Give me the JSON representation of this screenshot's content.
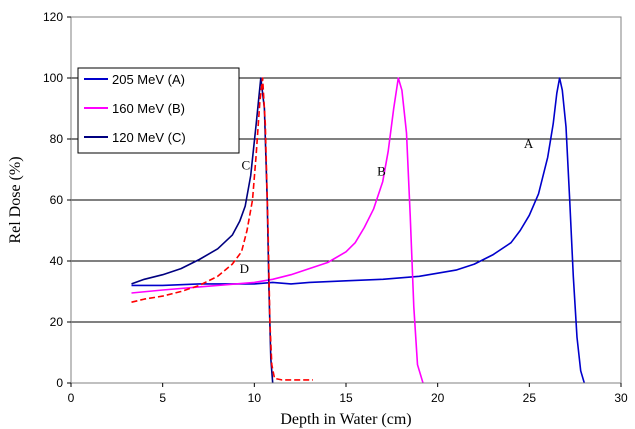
{
  "chart_data": {
    "type": "line",
    "xlabel": "Depth in Water  (cm)",
    "ylabel": "Rel Dose (%)",
    "xlim": [
      0,
      30
    ],
    "ylim": [
      0,
      120
    ],
    "x_ticks": [
      "0",
      "5",
      "10",
      "15",
      "20",
      "25",
      "30"
    ],
    "y_ticks": [
      "0",
      "20",
      "40",
      "60",
      "80",
      "100",
      "120"
    ],
    "grid": "horizontal",
    "legend_position": "top-left",
    "legend": [
      {
        "label": "205 MeV  (A)",
        "color": "#0000cc"
      },
      {
        "label": "160 MeV  (B)",
        "color": "#ff00ff"
      },
      {
        "label": "120 MeV  (C)",
        "color": "#000080"
      }
    ],
    "series": [
      {
        "label": "A",
        "color": "#0000cc",
        "dashed": false,
        "points": [
          [
            3.3,
            32
          ],
          [
            5,
            32
          ],
          [
            7,
            32.5
          ],
          [
            9,
            32.5
          ],
          [
            10,
            32.5
          ],
          [
            11,
            33
          ],
          [
            12,
            32.5
          ],
          [
            13,
            33
          ],
          [
            15,
            33.5
          ],
          [
            17,
            34
          ],
          [
            19,
            35
          ],
          [
            20,
            36
          ],
          [
            21,
            37
          ],
          [
            22,
            39
          ],
          [
            23,
            42
          ],
          [
            24,
            46
          ],
          [
            24.5,
            50
          ],
          [
            25,
            55
          ],
          [
            25.5,
            62
          ],
          [
            26,
            74
          ],
          [
            26.3,
            85
          ],
          [
            26.5,
            95
          ],
          [
            26.65,
            100
          ],
          [
            26.8,
            96
          ],
          [
            27,
            84
          ],
          [
            27.2,
            60
          ],
          [
            27.4,
            35
          ],
          [
            27.6,
            15
          ],
          [
            27.8,
            4
          ],
          [
            28,
            0
          ]
        ]
      },
      {
        "label": "B",
        "color": "#ff00ff",
        "dashed": false,
        "points": [
          [
            3.3,
            29.5
          ],
          [
            5,
            30.5
          ],
          [
            7,
            31.5
          ],
          [
            9,
            32.5
          ],
          [
            10,
            33
          ],
          [
            11,
            34
          ],
          [
            12,
            35.5
          ],
          [
            13,
            37.5
          ],
          [
            14,
            39.5
          ],
          [
            15,
            43
          ],
          [
            15.5,
            46
          ],
          [
            16,
            51
          ],
          [
            16.5,
            57
          ],
          [
            17,
            66
          ],
          [
            17.3,
            76
          ],
          [
            17.6,
            90
          ],
          [
            17.85,
            100
          ],
          [
            18.05,
            96
          ],
          [
            18.3,
            82
          ],
          [
            18.5,
            55
          ],
          [
            18.7,
            25
          ],
          [
            18.9,
            6
          ],
          [
            19.2,
            0
          ]
        ]
      },
      {
        "label": "C",
        "color": "#000080",
        "dashed": false,
        "points": [
          [
            3.3,
            32.5
          ],
          [
            4,
            34
          ],
          [
            5,
            35.5
          ],
          [
            6,
            37.5
          ],
          [
            7,
            40.5
          ],
          [
            8,
            44
          ],
          [
            8.8,
            48.5
          ],
          [
            9.2,
            53
          ],
          [
            9.5,
            58
          ],
          [
            9.8,
            68
          ],
          [
            10.1,
            85
          ],
          [
            10.35,
            100
          ],
          [
            10.55,
            90
          ],
          [
            10.7,
            60
          ],
          [
            10.8,
            30
          ],
          [
            10.9,
            8
          ],
          [
            11,
            0
          ]
        ]
      },
      {
        "label": "D",
        "color": "#ff0000",
        "dashed": true,
        "points": [
          [
            3.3,
            26.5
          ],
          [
            4,
            27.5
          ],
          [
            5,
            28.5
          ],
          [
            6,
            30
          ],
          [
            7,
            32
          ],
          [
            8,
            35
          ],
          [
            8.8,
            39
          ],
          [
            9.3,
            43
          ],
          [
            9.6,
            50
          ],
          [
            9.9,
            60
          ],
          [
            10.1,
            75
          ],
          [
            10.3,
            92
          ],
          [
            10.45,
            100
          ],
          [
            10.6,
            85
          ],
          [
            10.75,
            50
          ],
          [
            10.85,
            20
          ],
          [
            10.95,
            6
          ],
          [
            11.1,
            1.5
          ],
          [
            11.5,
            1
          ],
          [
            12.5,
            1
          ],
          [
            13.2,
            1
          ]
        ]
      }
    ],
    "curve_labels": [
      {
        "text": "A",
        "x": 24.7,
        "y": 77
      },
      {
        "text": "B",
        "x": 16.7,
        "y": 68
      },
      {
        "text": "C",
        "x": 9.3,
        "y": 70
      },
      {
        "text": "D",
        "x": 9.2,
        "y": 36
      }
    ]
  }
}
